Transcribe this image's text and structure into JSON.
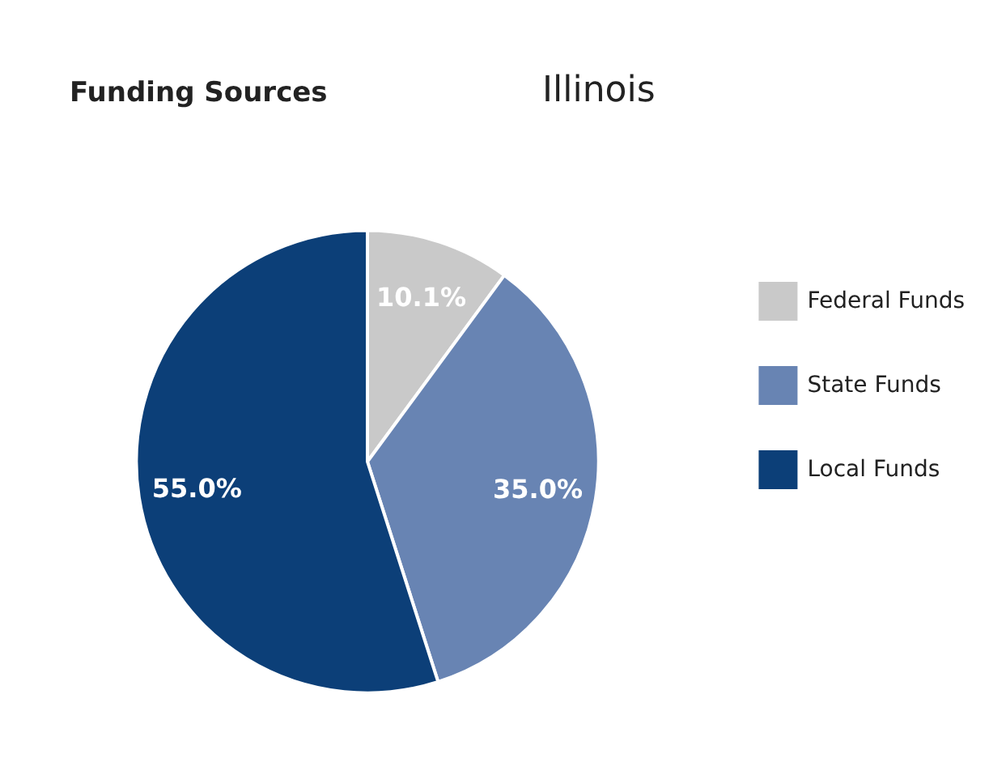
{
  "chart_data": {
    "type": "pie",
    "title": "Funding Sources",
    "subtitle": "Illinois",
    "categories": [
      "Federal Funds",
      "State Funds",
      "Local Funds"
    ],
    "values": [
      10.1,
      35.0,
      55.0
    ],
    "value_labels": [
      "10.1%",
      "35.0%",
      "55.0%"
    ],
    "colors": [
      "#c9c9c9",
      "#6884b3",
      "#0c3f78"
    ],
    "legend": "right"
  }
}
